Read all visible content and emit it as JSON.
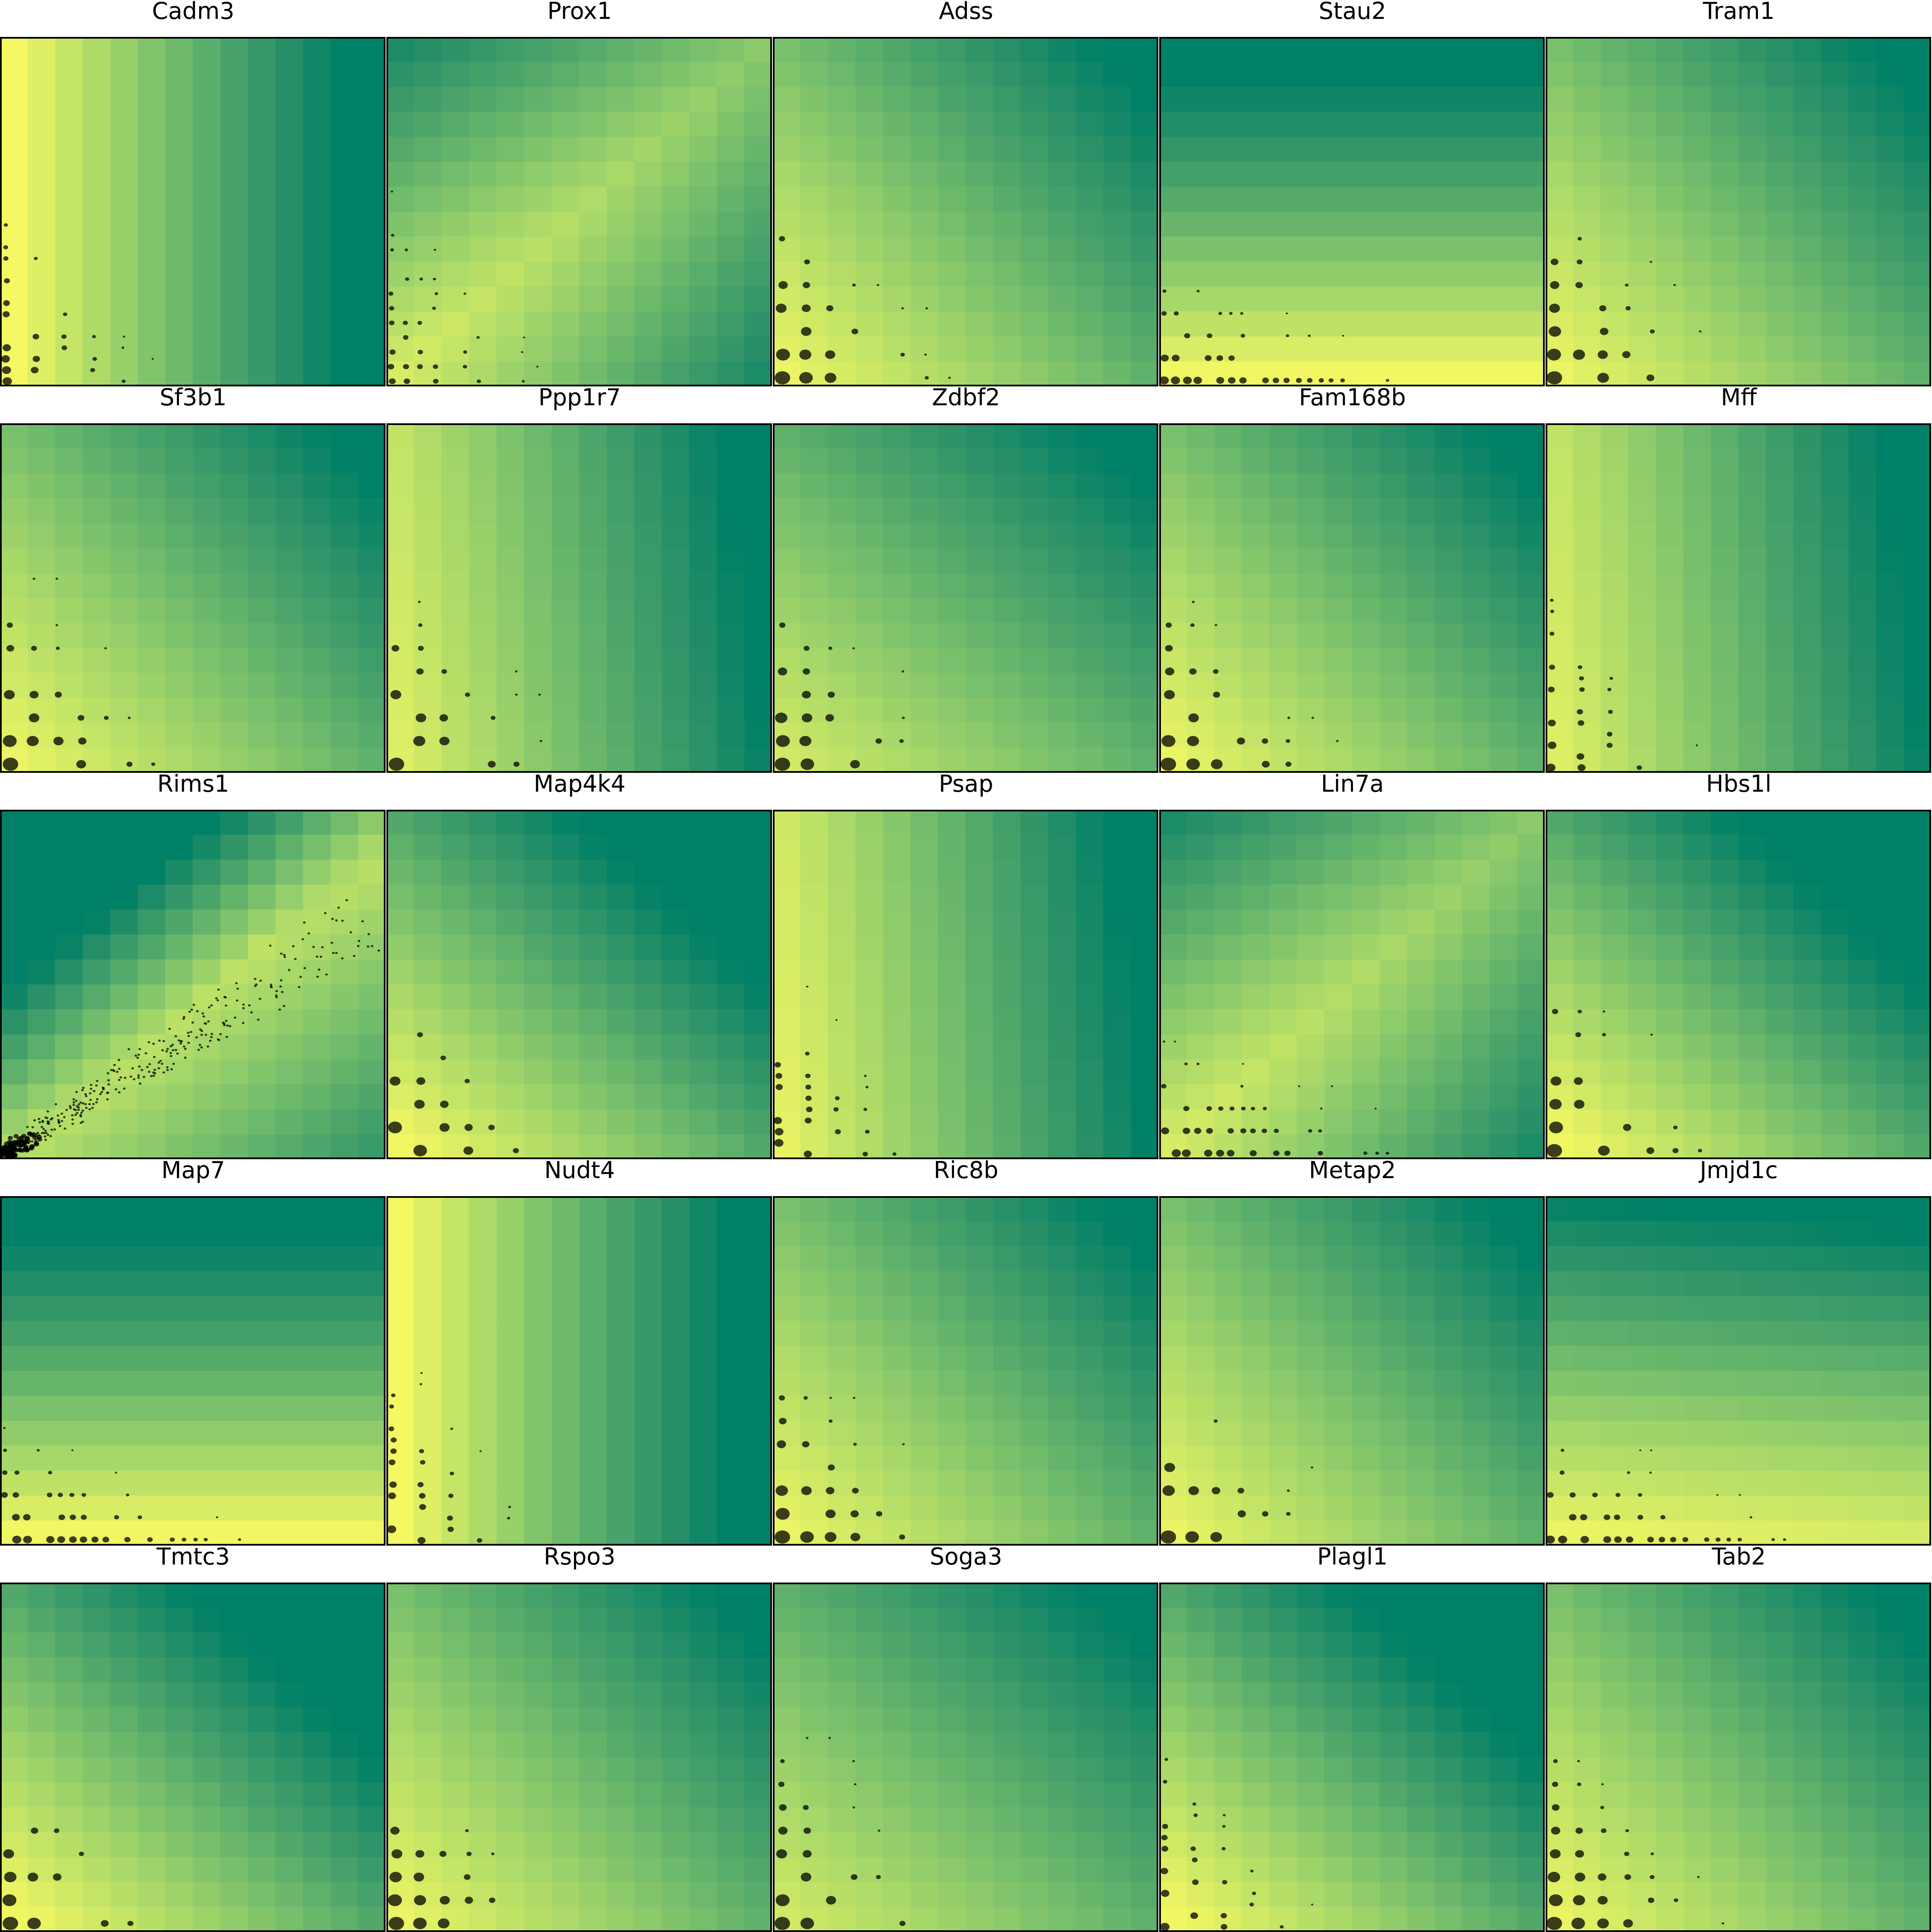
{
  "figure": {
    "rows": 5,
    "cols": 5,
    "colormap": [
      "#fefe62",
      "#e9f364",
      "#c3e466",
      "#9cd26a",
      "#74bd6c",
      "#4ea66a",
      "#2b9168",
      "#008066"
    ],
    "point_color": "#000000",
    "axes_frame_color": "#000000"
  },
  "chart_data": [
    {
      "type": "heatmap",
      "title": "Cadm3",
      "gradient": "vertical-strong",
      "points": "vertical-columns-left"
    },
    {
      "type": "heatmap",
      "title": "Prox1",
      "gradient": "diagonal-smooth",
      "points": "grid-scatter-wide"
    },
    {
      "type": "heatmap",
      "title": "Adss",
      "gradient": "corner",
      "points": "grid-corner"
    },
    {
      "type": "heatmap",
      "title": "Stau2",
      "gradient": "horizontal-strong",
      "points": "horizontal-rows-bottom"
    },
    {
      "type": "heatmap",
      "title": "Tram1",
      "gradient": "corner",
      "points": "grid-corner"
    },
    {
      "type": "heatmap",
      "title": "Sf3b1",
      "gradient": "corner",
      "points": "grid-corner-tall"
    },
    {
      "type": "heatmap",
      "title": "Ppp1r7",
      "gradient": "vertical",
      "points": "grid-corner-tall"
    },
    {
      "type": "heatmap",
      "title": "Zdbf2",
      "gradient": "corner-soft",
      "points": "grid-corner"
    },
    {
      "type": "heatmap",
      "title": "Fam168b",
      "gradient": "corner",
      "points": "grid-corner-tall"
    },
    {
      "type": "heatmap",
      "title": "Mff",
      "gradient": "vertical",
      "points": "vertical-columns-left"
    },
    {
      "type": "heatmap",
      "title": "Rims1",
      "gradient": "diagonal-band",
      "points": "diagonal-cloud"
    },
    {
      "type": "heatmap",
      "title": "Map4k4",
      "gradient": "corner-strong",
      "points": "grid-corner"
    },
    {
      "type": "heatmap",
      "title": "Psap",
      "gradient": "vertical-smooth",
      "points": "vertical-columns-left"
    },
    {
      "type": "heatmap",
      "title": "Lin7a",
      "gradient": "diagonal-smooth",
      "points": "horizontal-rows-bottom"
    },
    {
      "type": "heatmap",
      "title": "Hbs1l",
      "gradient": "corner-strong",
      "points": "grid-corner"
    },
    {
      "type": "heatmap",
      "title": "Map7",
      "gradient": "horizontal-strong",
      "points": "horizontal-rows-bottom"
    },
    {
      "type": "heatmap",
      "title": "Nudt4",
      "gradient": "vertical-strong",
      "points": "vertical-columns-left"
    },
    {
      "type": "heatmap",
      "title": "Ric8b",
      "gradient": "corner",
      "points": "grid-corner"
    },
    {
      "type": "heatmap",
      "title": "Metap2",
      "gradient": "corner",
      "points": "grid-corner"
    },
    {
      "type": "heatmap",
      "title": "Jmjd1c",
      "gradient": "horizontal",
      "points": "horizontal-rows-bottom"
    },
    {
      "type": "heatmap",
      "title": "Tmtc3",
      "gradient": "corner-strong",
      "points": "grid-corner-small"
    },
    {
      "type": "heatmap",
      "title": "Rspo3",
      "gradient": "corner",
      "points": "grid-corner-small"
    },
    {
      "type": "heatmap",
      "title": "Soga3",
      "gradient": "corner-soft",
      "points": "grid-corner-tall"
    },
    {
      "type": "heatmap",
      "title": "Plagl1",
      "gradient": "corner-strong",
      "points": "vertical-columns-left"
    },
    {
      "type": "heatmap",
      "title": "Tab2",
      "gradient": "corner",
      "points": "grid-corner-tall"
    }
  ]
}
